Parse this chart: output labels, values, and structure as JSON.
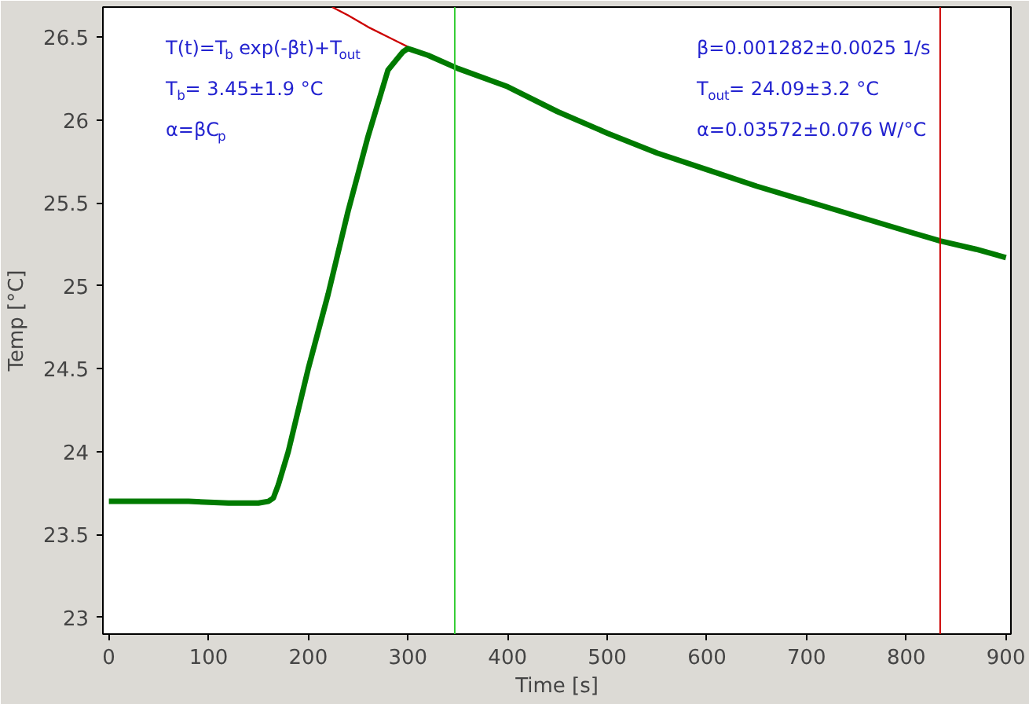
{
  "chart_data": {
    "type": "line",
    "xlabel": "Time [s]",
    "ylabel": "Temp [°C]",
    "xlim": [
      -6,
      905
    ],
    "ylim": [
      22.9,
      26.68
    ],
    "xticks": [
      0,
      100,
      200,
      300,
      400,
      500,
      600,
      700,
      800,
      900
    ],
    "yticks": [
      23,
      23.5,
      24,
      24.5,
      25,
      25.5,
      26,
      26.5
    ],
    "grid": false,
    "marker": "none",
    "line_style": "solid",
    "series": [
      {
        "color": "#cc0000",
        "x": [
          224,
          240,
          260,
          280,
          300
        ],
        "values": [
          26.68,
          26.63,
          26.56,
          26.5,
          26.44
        ]
      },
      {
        "color": "#007a00",
        "x": [
          0,
          40,
          80,
          120,
          150,
          160,
          165,
          170,
          180,
          200,
          220,
          240,
          260,
          280,
          295,
          300,
          305,
          320,
          350,
          400,
          450,
          500,
          550,
          600,
          650,
          700,
          750,
          800,
          834,
          870,
          900
        ],
        "values": [
          23.7,
          23.7,
          23.7,
          23.69,
          23.69,
          23.7,
          23.72,
          23.8,
          24.0,
          24.5,
          24.95,
          25.45,
          25.9,
          26.3,
          26.41,
          26.43,
          26.42,
          26.39,
          26.31,
          26.2,
          26.05,
          25.92,
          25.8,
          25.7,
          25.6,
          25.51,
          25.42,
          25.33,
          25.27,
          25.22,
          25.17
        ]
      }
    ],
    "ref_lines": [
      {
        "axis": "x",
        "value": 347,
        "color": "#33cc33"
      },
      {
        "axis": "x",
        "value": 834,
        "color": "#cc0000"
      }
    ],
    "annotations": [
      "T(t)=T$_{b}$ exp(-βt)+T$_{out}$",
      "T$_{b}$= 3.45±1.9 °C",
      "α=βC$_{p}$",
      "β=0.001282±0.0025 1/s",
      "T$_{out}$= 24.09±3.2 °C",
      "α=0.03572±0.076 W/°C"
    ]
  }
}
